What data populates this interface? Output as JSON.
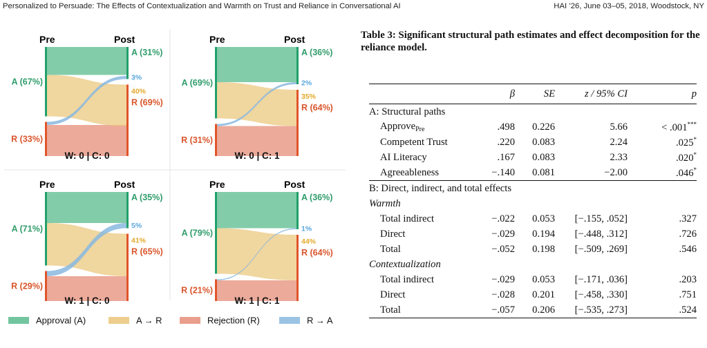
{
  "header": {
    "left": "Personalized to Persuade: The Effects of Contextualization and Warmth on Trust and Reliance in Conversational AI",
    "right": "HAI ’26, June 03–05, 2018, Woodstock, NY"
  },
  "figure": {
    "pre_label": "Pre",
    "post_label": "Post",
    "colors": {
      "approval": "#59bb8e",
      "rejection": "#e58e78",
      "a_to_r": "#eac67a",
      "r_to_a": "#88b8df",
      "approval_text": "#2f9c6a",
      "rejection_text": "#d9552b",
      "a_to_r_text": "#e3a928",
      "r_to_a_text": "#58a6dc",
      "approval_bar": "#21a06a",
      "rejection_bar": "#e0542a"
    },
    "panels": [
      {
        "title": "W: 0 | C: 0",
        "pre_a": "A (67%)",
        "pre_r": "R (33%)",
        "post_a": "A (31%)",
        "post_r": "R (69%)",
        "flow_ar": "40%",
        "flow_ra": "3%",
        "values": {
          "pre_a": 67,
          "pre_r": 33,
          "post_a": 31,
          "post_r": 69,
          "a_to_r": 40,
          "r_to_a": 3
        }
      },
      {
        "title": "W: 0 | C: 1",
        "pre_a": "A (69%)",
        "pre_r": "R (31%)",
        "post_a": "A (36%)",
        "post_r": "R (64%)",
        "flow_ar": "35%",
        "flow_ra": "2%",
        "values": {
          "pre_a": 69,
          "pre_r": 31,
          "post_a": 36,
          "post_r": 64,
          "a_to_r": 35,
          "r_to_a": 2
        }
      },
      {
        "title": "W: 1 | C: 0",
        "pre_a": "A (71%)",
        "pre_r": "R (29%)",
        "post_a": "A (35%)",
        "post_r": "R (65%)",
        "flow_ar": "41%",
        "flow_ra": "5%",
        "values": {
          "pre_a": 71,
          "pre_r": 29,
          "post_a": 35,
          "post_r": 65,
          "a_to_r": 41,
          "r_to_a": 5
        }
      },
      {
        "title": "W: 1 | C: 1",
        "pre_a": "A (79%)",
        "pre_r": "R (21%)",
        "post_a": "A (36%)",
        "post_r": "R (64%)",
        "flow_ar": "44%",
        "flow_ra": "1%",
        "values": {
          "pre_a": 79,
          "pre_r": 21,
          "post_a": 36,
          "post_r": 64,
          "a_to_r": 44,
          "r_to_a": 1
        }
      }
    ],
    "legend": [
      {
        "label": "Approval (A)",
        "key": "approval"
      },
      {
        "label": "A → R",
        "key": "a_to_r"
      },
      {
        "label": "Rejection (R)",
        "key": "rejection"
      },
      {
        "label": "R → A",
        "key": "r_to_a"
      }
    ]
  },
  "table": {
    "caption": "Table 3: Significant structural path estimates and effect decomposition for the reliance model.",
    "columns": {
      "label": "",
      "beta": "β",
      "se": "SE",
      "z_ci": "z / 95% CI",
      "p": "p"
    },
    "section_a": {
      "title": "A: Structural paths",
      "rows": [
        {
          "label": "Approve",
          "label_sub": "Pre",
          "beta": ".498",
          "se": "0.226",
          "z": "5.66",
          "p": "< .001",
          "stars": "***"
        },
        {
          "label": "Competent Trust",
          "label_sub": "",
          "beta": ".220",
          "se": "0.083",
          "z": "2.24",
          "p": ".025",
          "stars": "*"
        },
        {
          "label": "AI Literacy",
          "label_sub": "",
          "beta": ".167",
          "se": "0.083",
          "z": "2.33",
          "p": ".020",
          "stars": "*"
        },
        {
          "label": "Agreeableness",
          "label_sub": "",
          "beta": "−.140",
          "se": "0.081",
          "z": "−2.00",
          "p": ".046",
          "stars": "*"
        }
      ]
    },
    "section_b": {
      "title": "B: Direct, indirect, and total effects",
      "groups": [
        {
          "name": "Warmth",
          "rows": [
            {
              "label": "Total indirect",
              "beta": "−.022",
              "se": "0.053",
              "ci": "[−.155, .052]",
              "p": ".327"
            },
            {
              "label": "Direct",
              "beta": "−.029",
              "se": "0.194",
              "ci": "[−.448, .312]",
              "p": ".726"
            },
            {
              "label": "Total",
              "beta": "−.052",
              "se": "0.198",
              "ci": "[−.509, .269]",
              "p": ".546"
            }
          ]
        },
        {
          "name": "Contextualization",
          "rows": [
            {
              "label": "Total indirect",
              "beta": "−.029",
              "se": "0.053",
              "ci": "[−.171, .036]",
              "p": ".203"
            },
            {
              "label": "Direct",
              "beta": "−.028",
              "se": "0.201",
              "ci": "[−.458, .330]",
              "p": ".751"
            },
            {
              "label": "Total",
              "beta": "−.057",
              "se": "0.206",
              "ci": "[−.535, .273]",
              "p": ".524"
            }
          ]
        }
      ]
    }
  }
}
